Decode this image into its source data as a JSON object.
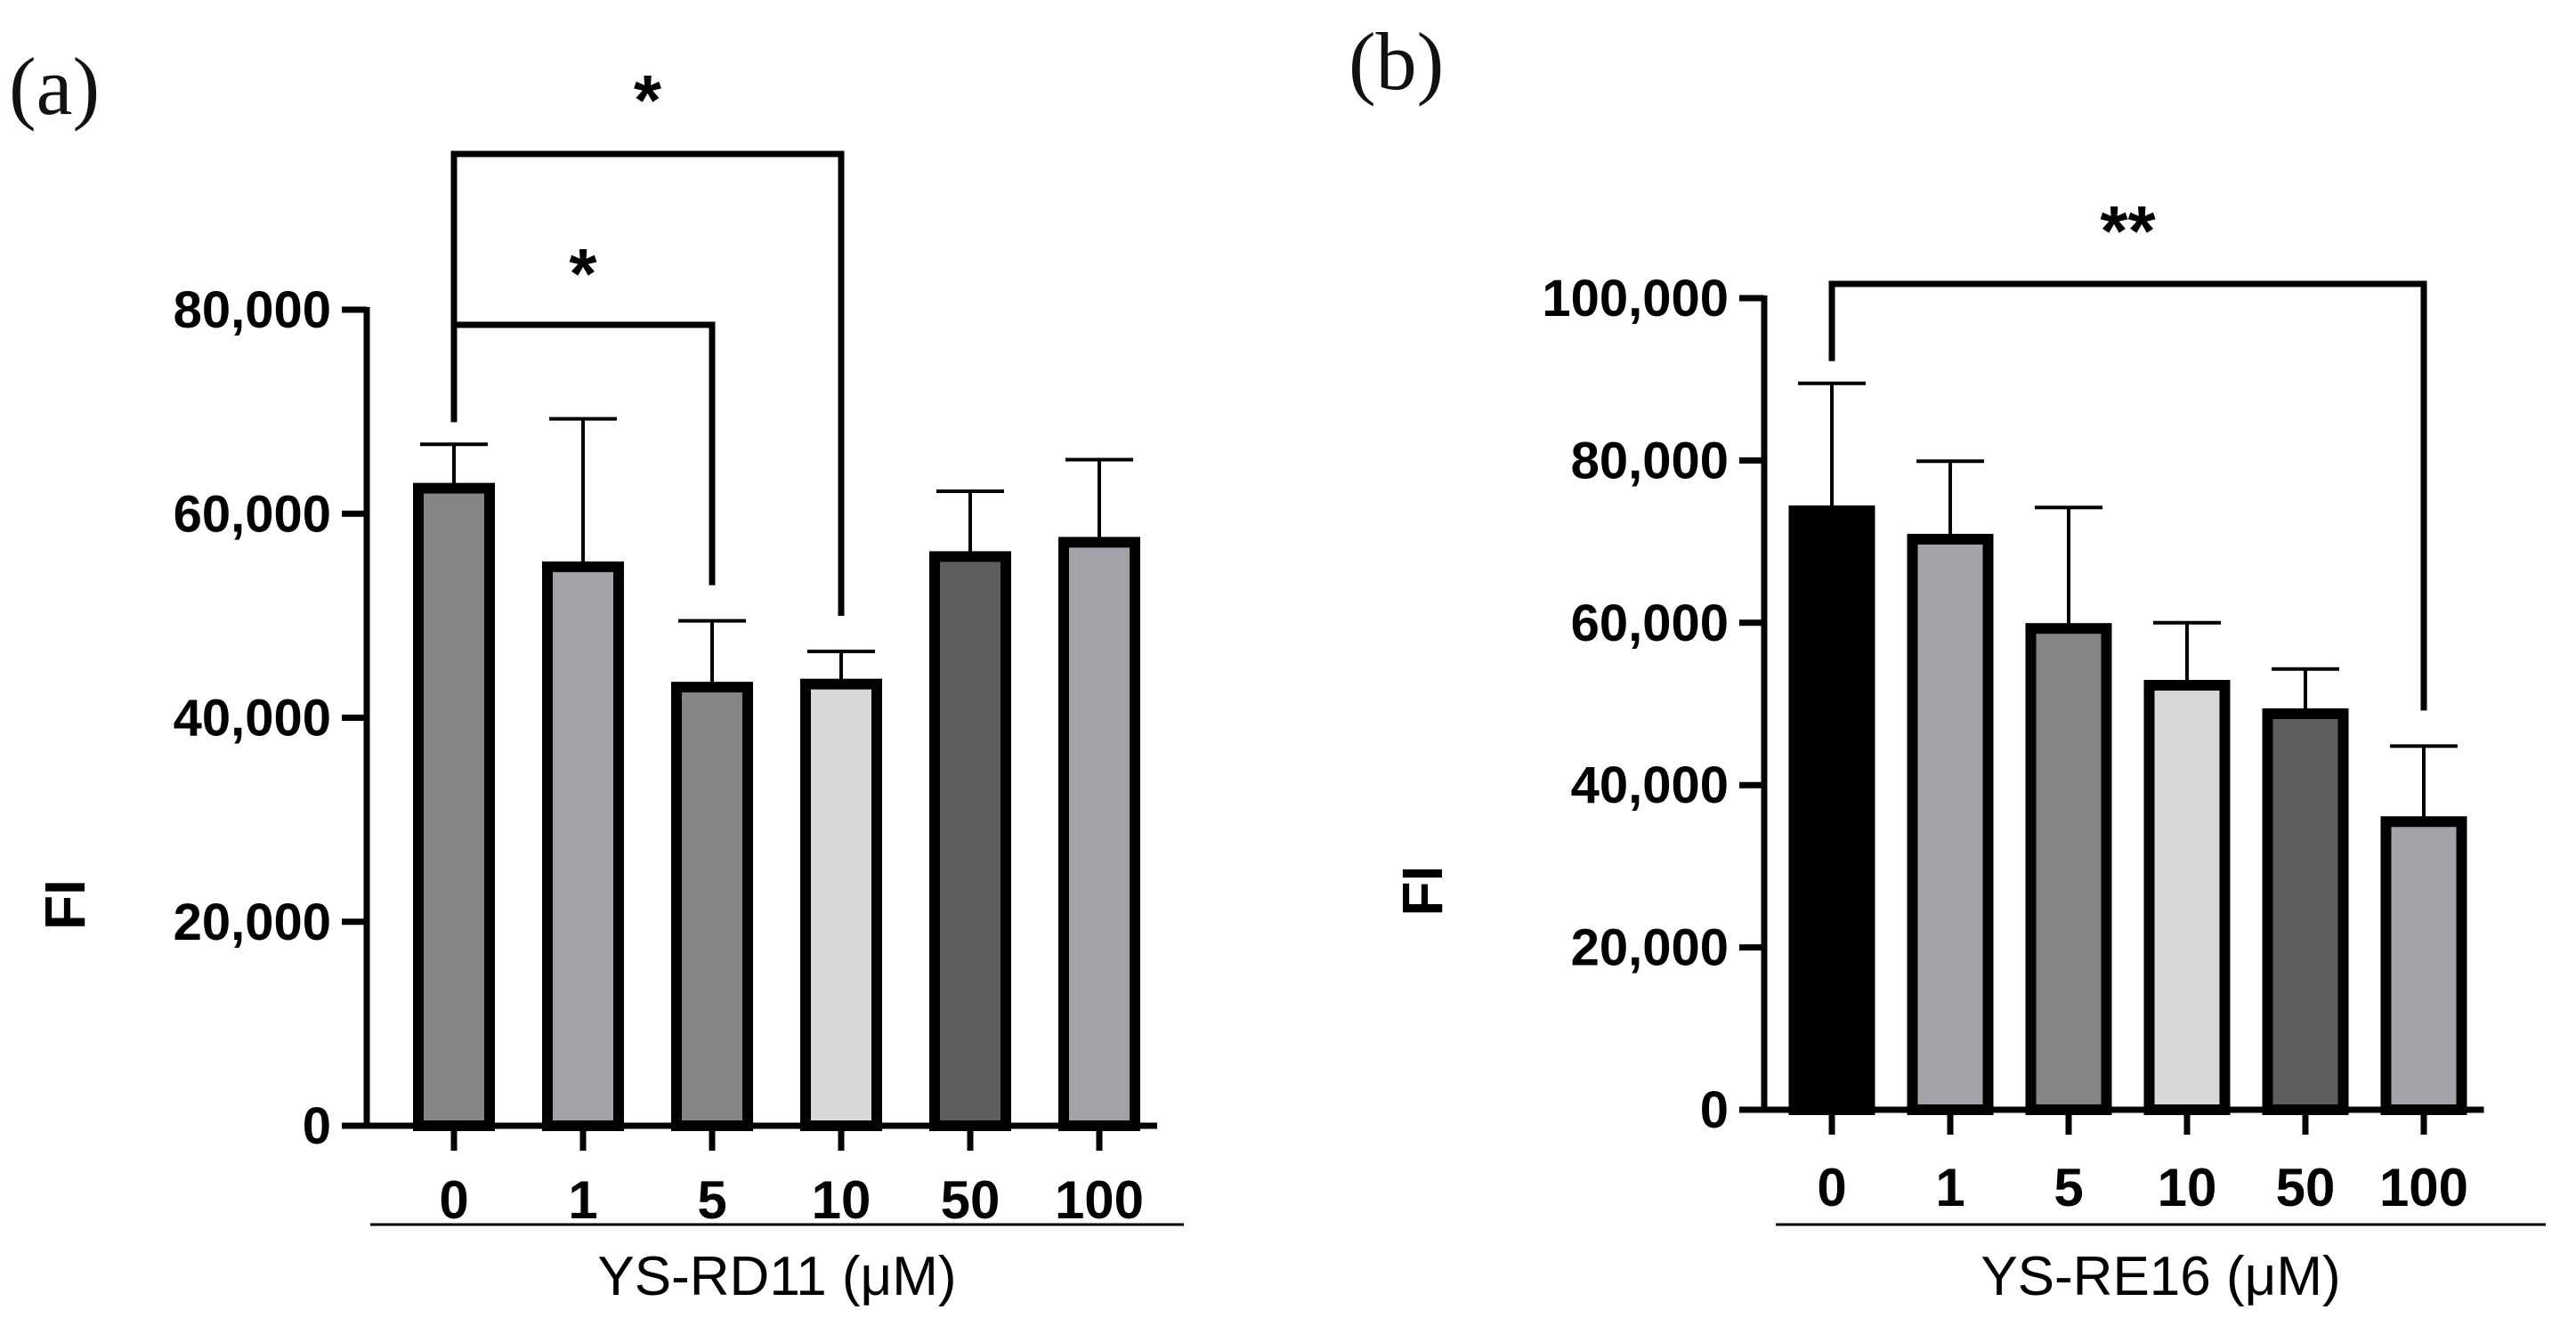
{
  "colors": {
    "black": "#000000",
    "dark_gray": "#5e5e5e",
    "mid_gray": "#858585",
    "light_gray": "#a3a2a8",
    "pale_gray": "#d8d8d8"
  },
  "chart_data": [
    {
      "type": "bar",
      "panel_label": "(a)",
      "title": "",
      "ylabel": "FI",
      "xlabel": "YS-RD11 (μM)",
      "ylim": [
        0,
        80000
      ],
      "yticks": [
        0,
        20000,
        40000,
        60000,
        80000
      ],
      "ytick_labels": [
        "0",
        "20,000",
        "40,000",
        "60,000",
        "80,000"
      ],
      "categories": [
        "0",
        "1",
        "5",
        "10",
        "50",
        "100"
      ],
      "values": [
        62500,
        54800,
        43000,
        43300,
        55800,
        57200
      ],
      "errors": [
        4300,
        14500,
        6500,
        3200,
        6400,
        8100
      ],
      "bar_colors": [
        "#858585",
        "#a3a2a8",
        "#858585",
        "#d8d8d8",
        "#5e5e5e",
        "#a3a2a8"
      ],
      "significance": [
        {
          "from": "0",
          "to": "5",
          "label": "*"
        },
        {
          "from": "0",
          "to": "10",
          "label": "*"
        }
      ]
    },
    {
      "type": "bar",
      "panel_label": "(b)",
      "title": "",
      "ylabel": "FI",
      "xlabel": "YS-RE16 (μM)",
      "ylim": [
        0,
        100000
      ],
      "yticks": [
        0,
        20000,
        40000,
        60000,
        80000,
        100000
      ],
      "ytick_labels": [
        "0",
        "20,000",
        "40,000",
        "60,000",
        "80,000",
        "100,000"
      ],
      "categories": [
        "0",
        "1",
        "5",
        "10",
        "50",
        "100"
      ],
      "values": [
        73800,
        70300,
        59300,
        52300,
        48800,
        35500
      ],
      "errors": [
        15700,
        9600,
        14900,
        7700,
        5500,
        9300
      ],
      "bar_colors": [
        "#000000",
        "#a3a2a8",
        "#858585",
        "#d8d8d8",
        "#5e5e5e",
        "#a3a2a8"
      ],
      "significance": [
        {
          "from": "0",
          "to": "100",
          "label": "**"
        }
      ]
    }
  ]
}
